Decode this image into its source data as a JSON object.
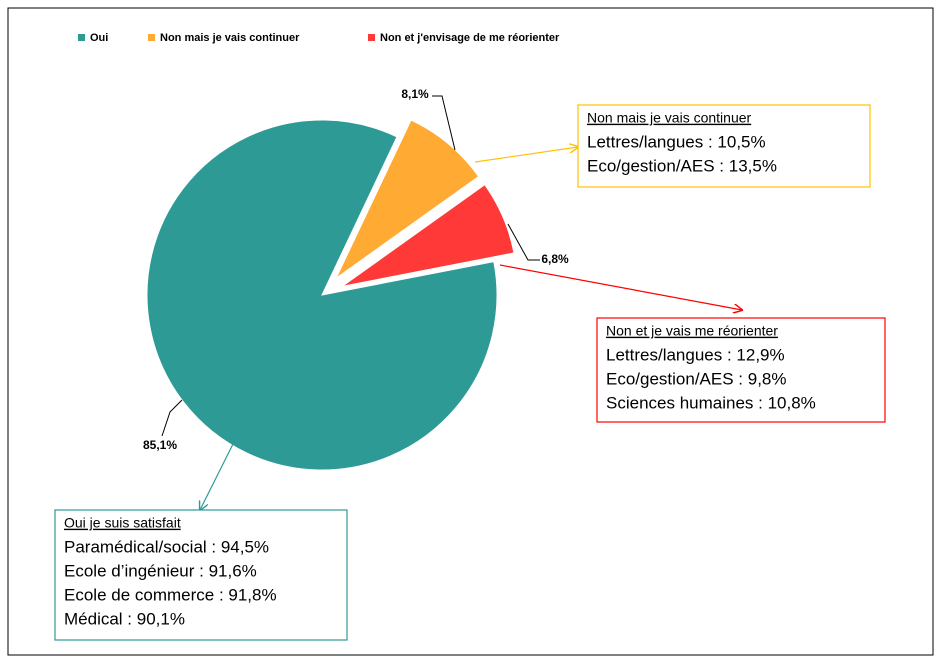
{
  "chart_data": {
    "type": "pie",
    "categories": [
      "Oui",
      "Non mais je vais continuer",
      "Non et j'envisage de me réorienter"
    ],
    "values": [
      85.1,
      8.1,
      6.8
    ],
    "value_labels": [
      "85,1%",
      "8,1%",
      "6,8%"
    ],
    "colors": [
      "#2e9a96",
      "#ffab33",
      "#ff3838"
    ],
    "legend": "top",
    "annotations": [
      {
        "title": "Oui je suis satisfait",
        "lines": [
          "Paramédical/social  : 94,5%",
          "Ecole d’ingénieur  : 91,6%",
          "Ecole de commerce : 91,8%",
          "Médical : 90,1%"
        ]
      },
      {
        "title": "Non mais je vais continuer",
        "lines": [
          "Lettres/langues  : 10,5%",
          "Eco/gestion/AES  : 13,5%"
        ]
      },
      {
        "title": "Non et je vais me réorienter",
        "lines": [
          "Lettres/langues  : 12,9%",
          "Eco/gestion/AES : 9,8%",
          "Sciences humaines  : 10,8%"
        ]
      }
    ]
  }
}
